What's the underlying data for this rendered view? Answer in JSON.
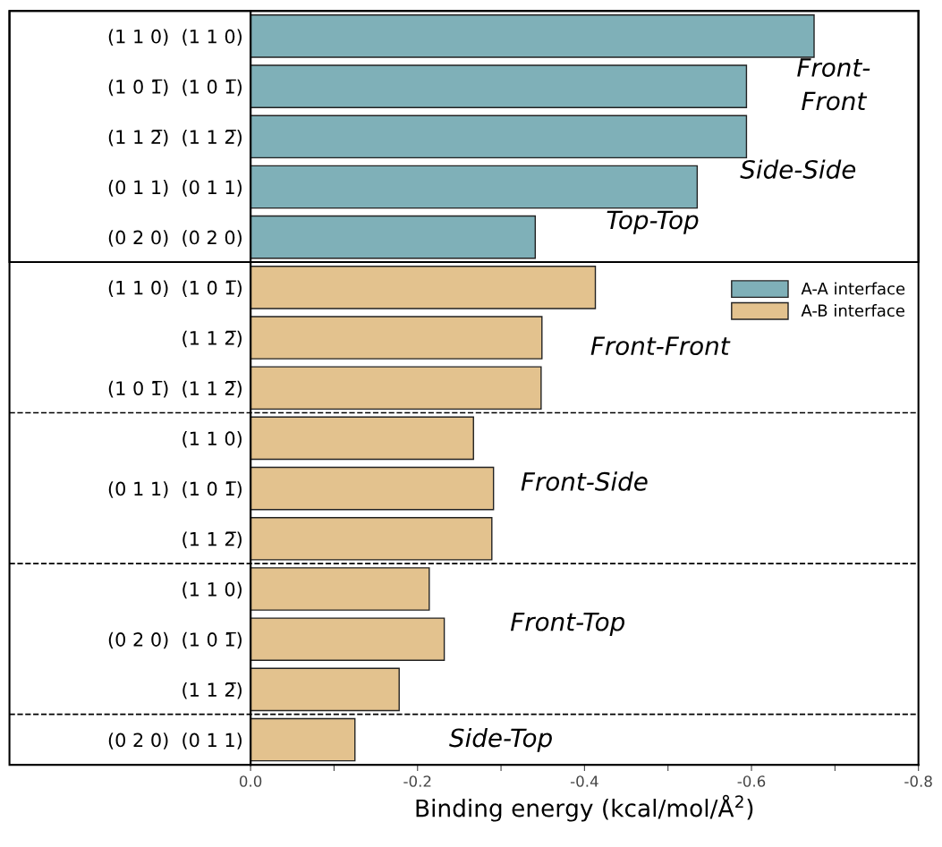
{
  "chart_data": {
    "type": "bar",
    "orientation": "horizontal",
    "categories": [
      "(1 1 0)  (1 1 0)",
      "(1 0 1̅)  (1 0 1̅)",
      "(1 1 2̅)  (1 1 2̅)",
      "(0 1 1)  (0 1 1)",
      "(0 2 0)  (0 2 0)",
      "(1 1 0)  (1 0 1̅)",
      "(1 1 2̅)",
      "(1 0 1̅)  (1 1 2̅)",
      "(1 1 0)",
      "(0 1 1)  (1 0 1̅)",
      "(1 1 2̅)",
      "(1 1 0)",
      "(0 2 0)  (1 0 1̅)",
      "(1 1 2̅)",
      "(0 2 0)  (0 1 1)"
    ],
    "series": [
      {
        "name": "A-A interface",
        "color": "#7fb0b8",
        "values": [
          -0.675,
          -0.594,
          -0.594,
          -0.535,
          -0.341,
          null,
          null,
          null,
          null,
          null,
          null,
          null,
          null,
          null,
          null
        ]
      },
      {
        "name": "A-B interface",
        "color": "#e3c28e",
        "values": [
          null,
          null,
          null,
          null,
          null,
          -0.413,
          -0.349,
          -0.348,
          -0.267,
          -0.291,
          -0.289,
          -0.214,
          -0.232,
          -0.178,
          -0.125
        ]
      }
    ],
    "xlabel": "Binding energy (kcal/mol/Å$^{2}$)",
    "xlim": [
      0.0,
      -0.8
    ],
    "xticks": [
      {
        "value": 0.0,
        "label": "0.0"
      },
      {
        "value": -0.1,
        "label": null
      },
      -0.2,
      {
        "value": -0.3,
        "label": null
      },
      -0.4,
      {
        "value": -0.5,
        "label": null
      },
      -0.6,
      {
        "value": -0.7,
        "label": null
      },
      -0.8
    ],
    "annotations": [
      "Front-\nFront",
      "Side-Side",
      "Top-Top",
      "Front-Front",
      "Front-Side",
      "Front-Top",
      "Side-Top"
    ],
    "legend": "right",
    "grid": false
  }
}
